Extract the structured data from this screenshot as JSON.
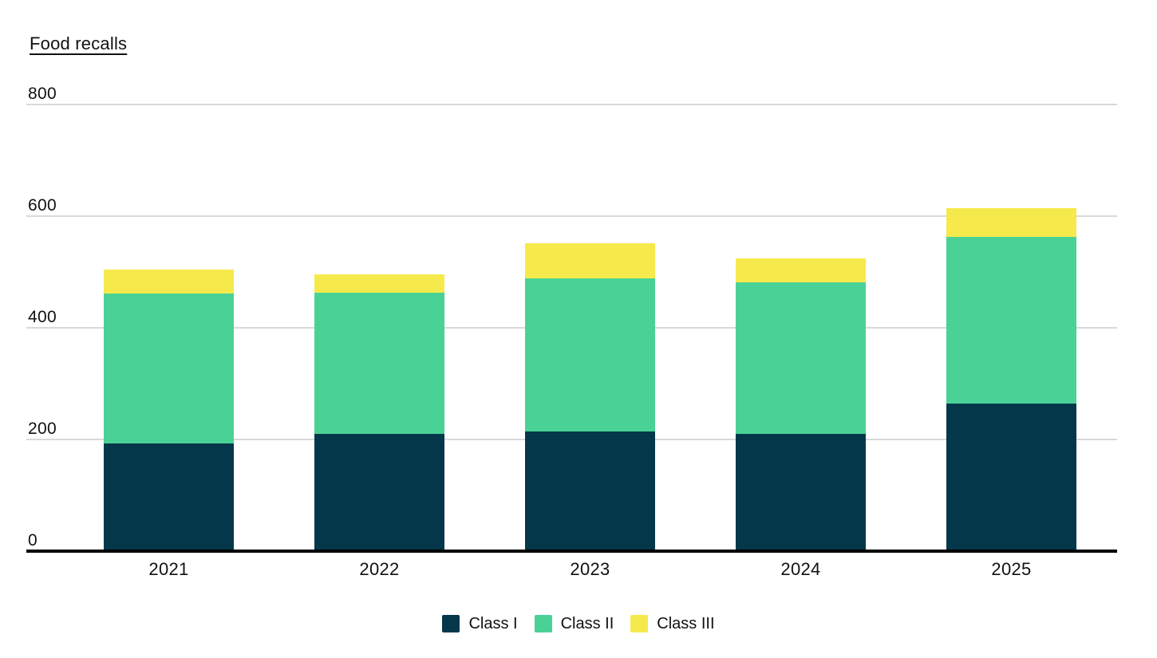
{
  "title": "Food recalls",
  "chart_data": {
    "type": "bar",
    "stacked": true,
    "title": "Food recalls",
    "categories": [
      "2021",
      "2022",
      "2023",
      "2024",
      "2025"
    ],
    "series": [
      {
        "name": "Class I",
        "color": "#05374a",
        "values": [
          193,
          210,
          214,
          210,
          264
        ]
      },
      {
        "name": "Class II",
        "color": "#4ad296",
        "values": [
          268,
          253,
          275,
          271,
          299
        ]
      },
      {
        "name": "Class III",
        "color": "#f6e94b",
        "values": [
          43,
          33,
          62,
          43,
          51
        ]
      }
    ],
    "totals": [
      504,
      496,
      551,
      524,
      614
    ],
    "ylim": [
      0,
      800
    ],
    "yticks": [
      0,
      200,
      400,
      600,
      800
    ],
    "grid": "horizontal",
    "legend_position": "bottom",
    "xlabel": "",
    "ylabel": ""
  },
  "colors": {
    "background": "#ffffff",
    "gridline": "#d9d9d9",
    "axis": "#000000",
    "text": "#111111"
  }
}
